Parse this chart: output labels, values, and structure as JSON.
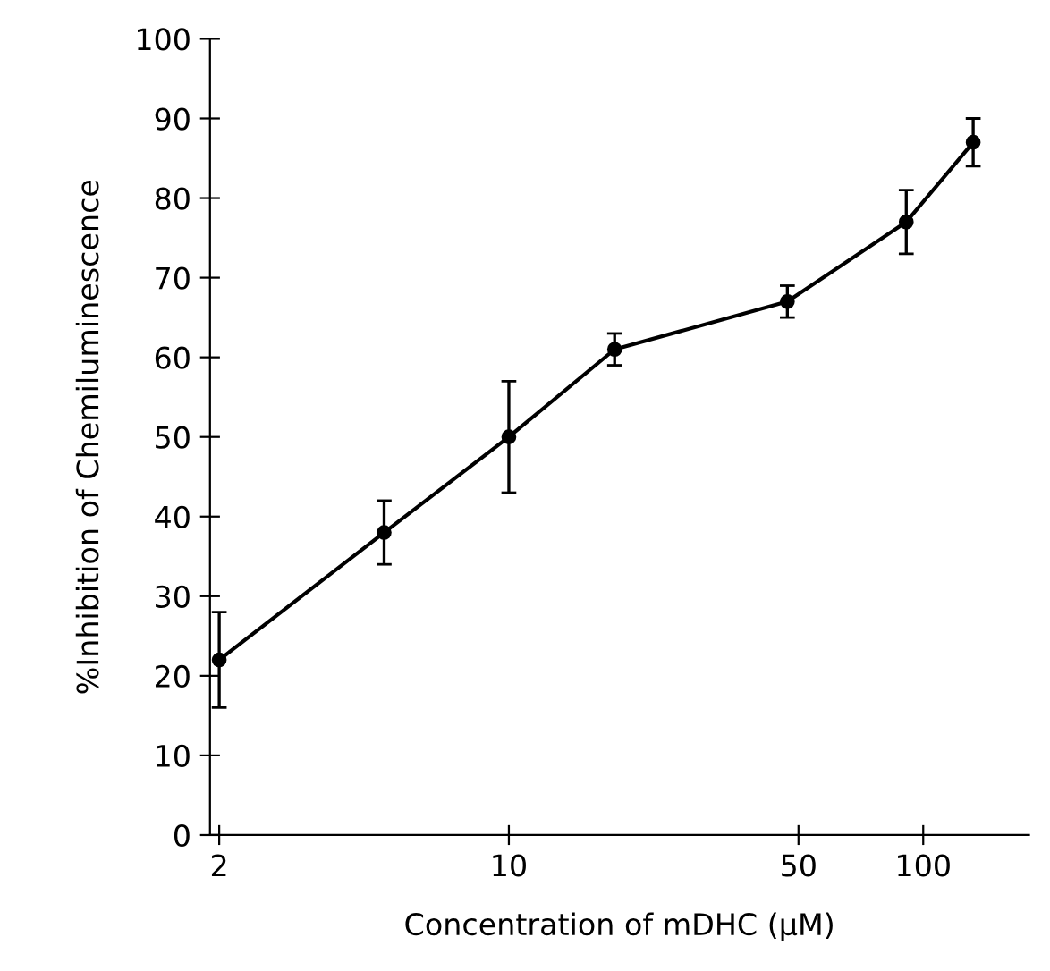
{
  "chart_data": {
    "type": "line",
    "xlabel": "Concentration of mDHC (μM)",
    "ylabel": "%Inhibition of Chemiluminescence",
    "x": [
      2,
      5,
      10,
      18,
      47,
      91,
      132
    ],
    "values": [
      22,
      38,
      50,
      61,
      67,
      77,
      87
    ],
    "errors": [
      [
        16,
        28
      ],
      [
        34,
        42
      ],
      [
        43,
        57
      ],
      [
        59,
        63
      ],
      [
        65,
        69
      ],
      [
        73,
        81
      ],
      [
        84,
        90
      ]
    ],
    "color": "#000000",
    "marker": "circle",
    "line_style": "solid",
    "log": "x",
    "grid": false,
    "xlim": [
      1.9,
      180
    ],
    "xticks": [
      2,
      10,
      50,
      100
    ],
    "ylim": [
      0,
      100
    ],
    "yticks": [
      0,
      10,
      20,
      30,
      40,
      50,
      60,
      70,
      80,
      90,
      100
    ]
  }
}
